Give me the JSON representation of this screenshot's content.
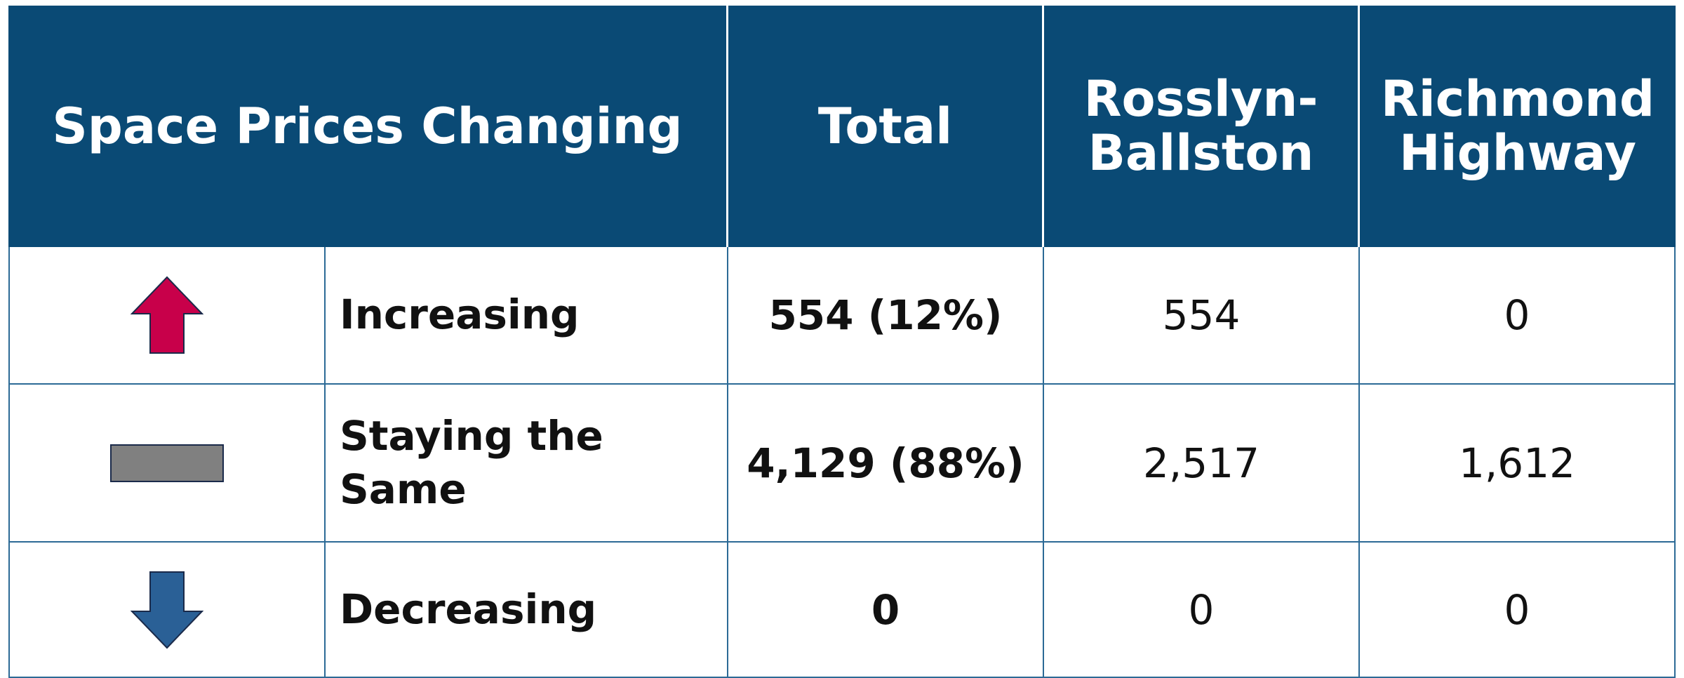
{
  "table": {
    "header": [
      "Space Prices Changing",
      "Total",
      "Rosslyn-Ballston",
      "Richmond Highway"
    ],
    "rows": [
      [
        "Increasing",
        "554 (12%)",
        "554",
        "0"
      ],
      [
        "Staying the Same",
        "4,129 (88%)",
        "2,517",
        "1,612"
      ],
      [
        "Decreasing",
        "0",
        "0",
        "0"
      ]
    ]
  }
}
